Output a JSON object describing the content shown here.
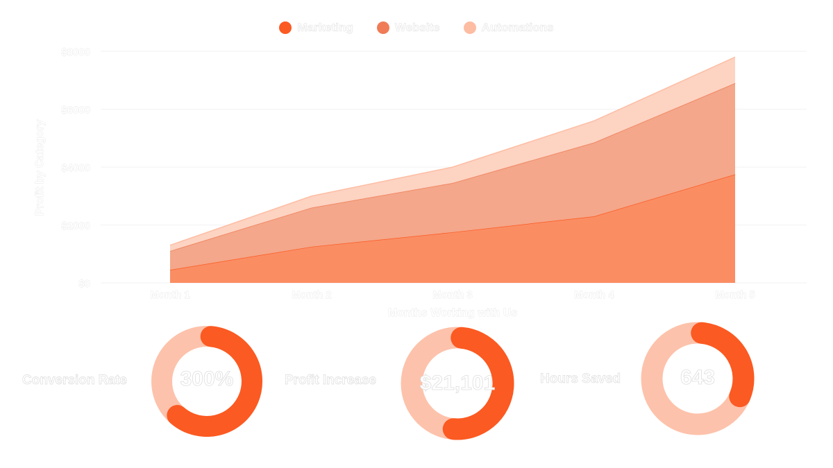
{
  "chart_data": {
    "type": "area",
    "stacked": true,
    "xlabel": "Months Working with Us",
    "ylabel": "Profit by Category",
    "categories": [
      "Month 1",
      "Month 2",
      "Month 3",
      "Month 4",
      "Month 5"
    ],
    "ylim": [
      0,
      8000
    ],
    "yticks": [
      "$0",
      "$2000",
      "$4000",
      "$6000",
      "$8000"
    ],
    "grid": true,
    "legend_position": "top-center",
    "series": [
      {
        "name": "Marketing",
        "color": "#fb5a22",
        "fill": "#fb8d63",
        "values": [
          450,
          1250,
          1750,
          2300,
          3750
        ]
      },
      {
        "name": "Website",
        "color": "#ef7c56",
        "fill": "#f4a78a",
        "values": [
          650,
          1350,
          1700,
          2550,
          3150
        ]
      },
      {
        "name": "Automations",
        "color": "#fdbda3",
        "fill": "#fdd3c2",
        "values": [
          200,
          400,
          550,
          750,
          900
        ]
      }
    ]
  },
  "kpis": [
    {
      "label": "Conversion Rate",
      "value": "300%",
      "fraction": 0.6,
      "start_deg": 5
    },
    {
      "label": "Profit Increase",
      "value": "$21,101",
      "fraction": 0.5,
      "start_deg": 5
    },
    {
      "label": "Hours Saved",
      "value": "643",
      "fraction": 0.3,
      "start_deg": 5
    }
  ],
  "colors": {
    "accent": "#fb5a22",
    "ring_track": "#fdc2ab",
    "grid": "#f2f2f2"
  }
}
